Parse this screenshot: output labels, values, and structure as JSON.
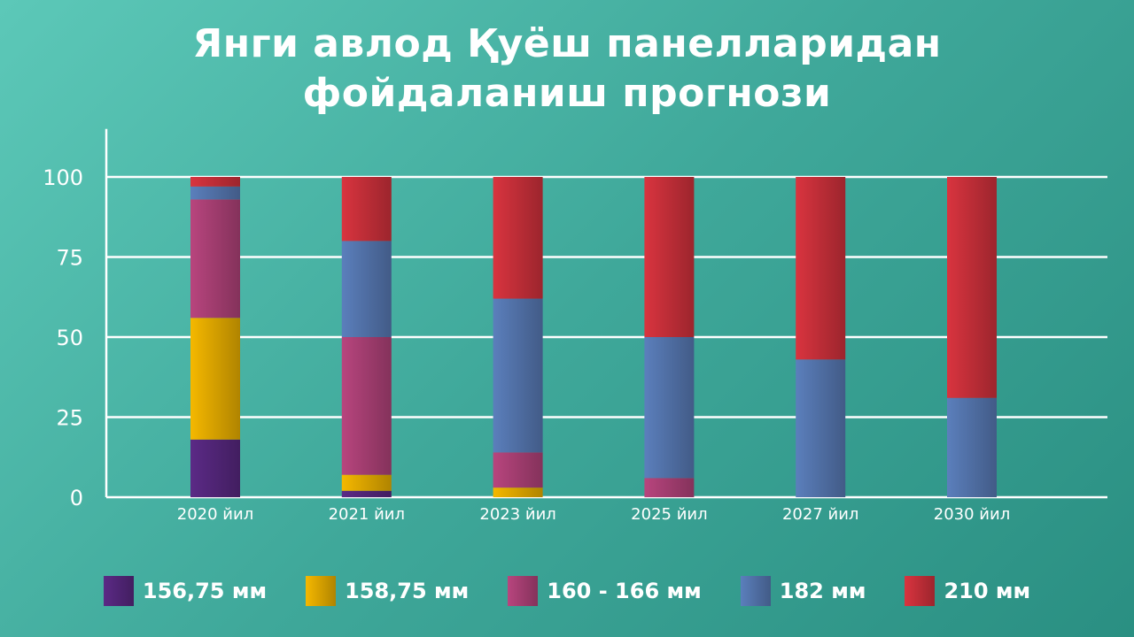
{
  "title_line1": "Янги авлод Қуёш панелларидан",
  "title_line2": "фойдаланиш прогнози",
  "chart_data": {
    "type": "bar",
    "stacked": true,
    "title": "Янги авлод Қуёш панелларидан фойдаланиш прогнози",
    "categories": [
      "2020 йил",
      "2021 йил",
      "2023 йил",
      "2025 йил",
      "2027 йил",
      "2030 йил"
    ],
    "series": [
      {
        "name": "156,75 мм",
        "color": "#5b2a86",
        "values": [
          18,
          2,
          0,
          0,
          0,
          0
        ]
      },
      {
        "name": "158,75 мм",
        "color": "#f5b800",
        "values": [
          38,
          5,
          3,
          0,
          0,
          0
        ]
      },
      {
        "name": "160 - 166 мм",
        "color": "#b8457e",
        "values": [
          37,
          43,
          11,
          6,
          0,
          0
        ]
      },
      {
        "name": "182 мм",
        "color": "#5b7fbc",
        "values": [
          4,
          30,
          48,
          44,
          43,
          31
        ]
      },
      {
        "name": "210 мм",
        "color": "#d9343f",
        "values": [
          3,
          20,
          38,
          50,
          57,
          69
        ]
      }
    ],
    "yticks": [
      0,
      25,
      50,
      75,
      100
    ],
    "ylim": [
      0,
      115
    ],
    "grid": true,
    "legend_position": "bottom"
  }
}
